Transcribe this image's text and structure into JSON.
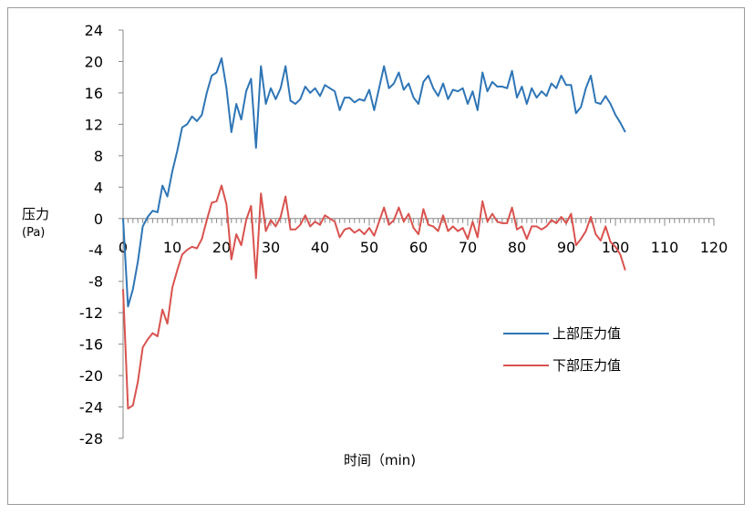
{
  "chart_data": {
    "type": "line",
    "title": "",
    "xlabel": "时间（min)",
    "ylabel": "压力",
    "ylabel_unit": "(Pa)",
    "xlim": [
      0,
      120
    ],
    "ylim": [
      -28,
      24
    ],
    "x_ticks": [
      0,
      10,
      20,
      30,
      40,
      50,
      60,
      70,
      80,
      90,
      100,
      110,
      120
    ],
    "y_ticks": [
      24,
      20,
      16,
      12,
      8,
      4,
      0,
      -4,
      -8,
      -12,
      -16,
      -20,
      -24,
      -28
    ],
    "grid": false,
    "legend_position": "right",
    "series": [
      {
        "name": "上部压力值",
        "color": "#2e75b6",
        "x": [
          0,
          1,
          2,
          3,
          4,
          5,
          6,
          7,
          8,
          9,
          10,
          11,
          12,
          13,
          14,
          15,
          16,
          17,
          18,
          19,
          20,
          21,
          22,
          23,
          24,
          25,
          26,
          27,
          28,
          29,
          30,
          31,
          32,
          33,
          34,
          35,
          36,
          37,
          38,
          39,
          40,
          41,
          42,
          43,
          44,
          45,
          46,
          47,
          48,
          49,
          50,
          51,
          52,
          53,
          54,
          55,
          56,
          57,
          58,
          59,
          60,
          61,
          62,
          63,
          64,
          65,
          66,
          67,
          68,
          69,
          70,
          71,
          72,
          73,
          74,
          75,
          76,
          77,
          78,
          79,
          80,
          81,
          82,
          83,
          84,
          85,
          86,
          87,
          88,
          89,
          90,
          91,
          92,
          93,
          94,
          95,
          96,
          97,
          98,
          99,
          100,
          101,
          102
        ],
        "y": [
          0,
          -11.2,
          -9,
          -5.5,
          -1,
          0.2,
          1,
          0.8,
          4.2,
          2.8,
          6,
          8.6,
          11.6,
          12,
          13,
          12.4,
          13.2,
          16,
          18.2,
          18.6,
          20.4,
          16.6,
          11,
          14.6,
          12.6,
          16.2,
          17.8,
          9,
          19.4,
          14.6,
          16.6,
          15.2,
          16.6,
          19.4,
          15,
          14.6,
          15.2,
          16.8,
          16,
          16.6,
          15.6,
          17,
          16.6,
          16.2,
          13.8,
          15.4,
          15.4,
          14.8,
          15.2,
          15,
          16.4,
          13.8,
          16.6,
          19.4,
          16.6,
          17.2,
          18.6,
          16.4,
          17.2,
          15.4,
          14.6,
          17.4,
          18.2,
          16.6,
          15.6,
          17.2,
          15.2,
          16.4,
          16.2,
          16.6,
          14.6,
          16.2,
          13.8,
          18.6,
          16.2,
          17.4,
          16.8,
          16.8,
          16.6,
          18.8,
          15.4,
          16.8,
          14.6,
          16.6,
          15.4,
          16.2,
          15.6,
          17.2,
          16.6,
          18.2,
          17,
          17,
          13.4,
          14.2,
          16.6,
          18.2,
          14.8,
          14.6,
          15.6,
          14.6,
          13.2,
          12.2,
          11
        ]
      },
      {
        "name": "下部压力值",
        "color": "#d9534f",
        "x": [
          0,
          1,
          2,
          3,
          4,
          5,
          6,
          7,
          8,
          9,
          10,
          11,
          12,
          13,
          14,
          15,
          16,
          17,
          18,
          19,
          20,
          21,
          22,
          23,
          24,
          25,
          26,
          27,
          28,
          29,
          30,
          31,
          32,
          33,
          34,
          35,
          36,
          37,
          38,
          39,
          40,
          41,
          42,
          43,
          44,
          45,
          46,
          47,
          48,
          49,
          50,
          51,
          52,
          53,
          54,
          55,
          56,
          57,
          58,
          59,
          60,
          61,
          62,
          63,
          64,
          65,
          66,
          67,
          68,
          69,
          70,
          71,
          72,
          73,
          74,
          75,
          76,
          77,
          78,
          79,
          80,
          81,
          82,
          83,
          84,
          85,
          86,
          87,
          88,
          89,
          90,
          91,
          92,
          93,
          94,
          95,
          96,
          97,
          98,
          99,
          100,
          101,
          102
        ],
        "y": [
          -9,
          -24.2,
          -23.8,
          -20.8,
          -16.4,
          -15.4,
          -14.6,
          -15,
          -11.6,
          -13.4,
          -8.8,
          -6.6,
          -4.6,
          -4,
          -3.6,
          -3.8,
          -2.6,
          -0.2,
          2,
          2.2,
          4.2,
          1.8,
          -5.2,
          -2,
          -3.4,
          -0.2,
          1.6,
          -7.6,
          3.2,
          -1.6,
          -0.2,
          -1,
          0.2,
          2.8,
          -1.4,
          -1.4,
          -0.8,
          0.4,
          -1,
          -0.4,
          -0.8,
          0.4,
          0,
          -0.4,
          -2.4,
          -1.4,
          -1.2,
          -1.8,
          -1.4,
          -2,
          -1.2,
          -2.2,
          -0.4,
          1.4,
          -0.8,
          -0.2,
          1.4,
          -0.4,
          0.6,
          -1.2,
          -2,
          1.2,
          -0.8,
          -1,
          -1.6,
          0.4,
          -1.6,
          -1,
          -1.6,
          -1.2,
          -2.6,
          -0.4,
          -2.4,
          2.2,
          -0.4,
          0.6,
          -0.4,
          -0.6,
          -0.6,
          1.4,
          -1.4,
          -1,
          -2.6,
          -1,
          -1,
          -1.4,
          -1,
          -0.2,
          -0.6,
          0.2,
          -0.6,
          0.6,
          -3.4,
          -2.6,
          -1.6,
          0.2,
          -2,
          -2.8,
          -1,
          -3,
          -3.6,
          -4.6,
          -6.6
        ]
      }
    ]
  }
}
